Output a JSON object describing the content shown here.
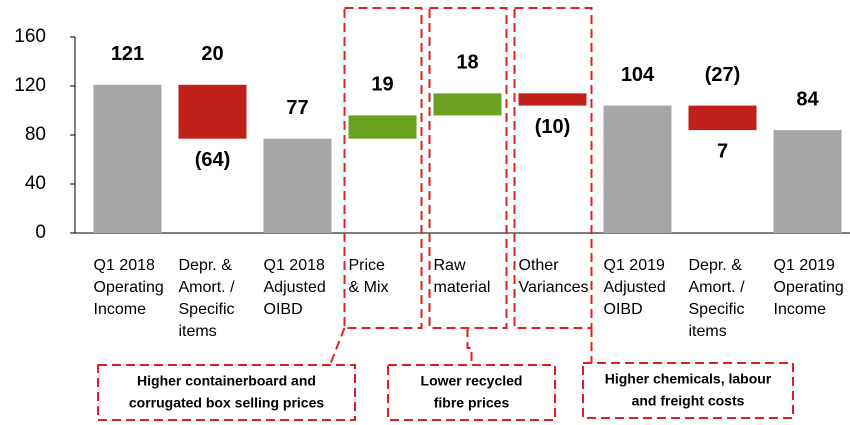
{
  "chart_data": {
    "type": "waterfall",
    "categories": [
      [
        "Q1 2018",
        "Operating",
        "Income"
      ],
      [
        "Depr. &",
        "Amort. /",
        "Specific",
        "items"
      ],
      [
        "Q1 2018",
        "Adjusted",
        "OIBD"
      ],
      [
        "Price",
        "& Mix"
      ],
      [
        "Raw",
        "material"
      ],
      [
        "Other",
        "Variances"
      ],
      [
        "Q1 2019",
        "Adjusted",
        "OIBD"
      ],
      [
        "Depr. &",
        "Amort. /",
        "Specific",
        "items"
      ],
      [
        "Q1 2019",
        "Operating",
        "Income"
      ]
    ],
    "steps": [
      {
        "kind": "total",
        "values": [
          121
        ],
        "value_labels": [
          "121"
        ]
      },
      {
        "kind": "change",
        "values": [
          20,
          -64
        ],
        "value_labels": [
          "20",
          "(64)"
        ]
      },
      {
        "kind": "total",
        "values": [
          77
        ],
        "value_labels": [
          "77"
        ]
      },
      {
        "kind": "change",
        "values": [
          19
        ],
        "value_labels": [
          "19"
        ]
      },
      {
        "kind": "change",
        "values": [
          18
        ],
        "value_labels": [
          "18"
        ]
      },
      {
        "kind": "change",
        "values": [
          -10
        ],
        "value_labels": [
          "(10)"
        ]
      },
      {
        "kind": "total",
        "values": [
          104
        ],
        "value_labels": [
          "104"
        ]
      },
      {
        "kind": "change",
        "values": [
          -27,
          7
        ],
        "value_labels": [
          "(27)",
          "7"
        ]
      },
      {
        "kind": "total",
        "values": [
          84
        ],
        "value_labels": [
          "84"
        ]
      }
    ],
    "colors": {
      "total": "#a6a6a6",
      "increase": "#6aa121",
      "decrease": "#c0201a"
    },
    "ylim": [
      0,
      160
    ],
    "yticks": [
      0,
      40,
      80,
      120,
      160
    ],
    "annotations": [
      {
        "category": 3,
        "lines": [
          "Higher containerboard and",
          "corrugated box selling prices"
        ]
      },
      {
        "category": 4,
        "lines": [
          "Lower recycled",
          "fibre prices"
        ]
      },
      {
        "category": 5,
        "lines": [
          "Higher chemicals, labour",
          "and freight costs"
        ]
      }
    ]
  }
}
